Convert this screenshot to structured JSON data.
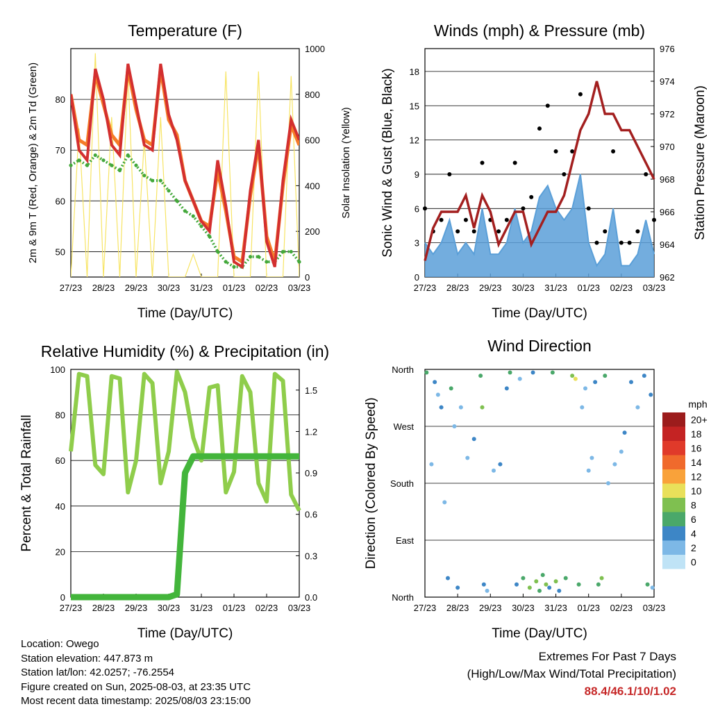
{
  "time_labels": [
    "27/23",
    "28/23",
    "29/23",
    "30/23",
    "31/23",
    "01/23",
    "02/23",
    "03/23"
  ],
  "info": {
    "location": "Location: Owego",
    "elevation": "Station elevation: 447.873 m",
    "latlon": "Station lat/lon: 42.0257; -76.2554",
    "created": "Figure created on Sun, 2025-08-03, at 23:35 UTC",
    "recent": "Most recent data timestamp: 2025/08/03 23:15:00"
  },
  "extremes": {
    "line1": "Extremes For Past 7 Days",
    "line2": "(High/Low/Max Wind/Total Precipitation)",
    "value": "88.4/46.1/10/1.02"
  },
  "colors": {
    "temp2m": "#d32f2f",
    "temp9m": "#f57c28",
    "dewpoint": "#43a83a",
    "solar": "#f7e463",
    "wind": "#5a9fd8",
    "gust": "#000000",
    "pressure": "#a31f1f",
    "rh": "#8fcd4b",
    "precip": "#43b53b"
  },
  "chart_data": [
    {
      "id": "temperature",
      "type": "line",
      "title": "Temperature (F)",
      "xlabel": "Time (Day/UTC)",
      "ylabel": "2m & 9m T (Red, Orange) & 2m Td (Green)",
      "y2label": "Solar Insolation (Yellow)",
      "x": [
        0,
        0.25,
        0.5,
        0.75,
        1,
        1.25,
        1.5,
        1.75,
        2,
        2.25,
        2.5,
        2.75,
        3,
        3.25,
        3.5,
        3.75,
        4,
        4.25,
        4.5,
        4.75,
        5,
        5.25,
        5.5,
        5.75,
        6,
        6.25,
        6.5,
        6.75,
        7
      ],
      "ylim": [
        45,
        90
      ],
      "yticks": [
        50,
        60,
        70,
        80
      ],
      "y2lim": [
        0,
        1000
      ],
      "y2ticks": [
        0,
        200,
        400,
        600,
        800,
        1000
      ],
      "series": [
        {
          "name": "2m T",
          "axis": "left",
          "values": [
            81,
            70,
            68,
            86,
            80,
            71,
            69,
            87,
            79,
            71,
            70,
            87,
            77,
            72,
            64,
            60,
            56,
            54,
            68,
            59,
            48,
            47,
            62,
            72,
            52,
            47,
            64,
            76,
            72
          ]
        },
        {
          "name": "9m T",
          "axis": "left",
          "values": [
            81,
            72,
            71,
            85,
            79,
            73,
            71,
            86,
            78,
            72,
            71,
            86,
            76,
            73,
            64,
            60,
            56,
            55,
            66,
            58,
            49,
            48,
            61,
            71,
            53,
            48,
            63,
            75,
            71
          ]
        },
        {
          "name": "2m Td",
          "axis": "left",
          "values": [
            67,
            68,
            67,
            69,
            68,
            67,
            66,
            69,
            67,
            65,
            64,
            64,
            62,
            60,
            58,
            57,
            55,
            53,
            50,
            48,
            47,
            47,
            49,
            49,
            48,
            48,
            50,
            50,
            48
          ]
        },
        {
          "name": "Solar",
          "axis": "right",
          "values": [
            0,
            650,
            0,
            980,
            0,
            700,
            0,
            900,
            0,
            600,
            0,
            700,
            0,
            0,
            0,
            100,
            0,
            0,
            0,
            900,
            0,
            0,
            0,
            900,
            0,
            0,
            0,
            880,
            0
          ]
        }
      ]
    },
    {
      "id": "winds",
      "type": "line",
      "title": "Winds (mph) & Pressure (mb)",
      "xlabel": "Time (Day/UTC)",
      "ylabel": "Sonic Wind & Gust (Blue, Black)",
      "y2label": "Station Pressure (Maroon)",
      "x": [
        0,
        0.25,
        0.5,
        0.75,
        1,
        1.25,
        1.5,
        1.75,
        2,
        2.25,
        2.5,
        2.75,
        3,
        3.25,
        3.5,
        3.75,
        4,
        4.25,
        4.5,
        4.75,
        5,
        5.25,
        5.5,
        5.75,
        6,
        6.25,
        6.5,
        6.75,
        7
      ],
      "ylim": [
        0,
        20
      ],
      "yticks": [
        0,
        3,
        6,
        9,
        12,
        15,
        18
      ],
      "y2lim": [
        962,
        976
      ],
      "y2ticks": [
        962,
        964,
        966,
        968,
        970,
        972,
        974,
        976
      ],
      "series": [
        {
          "name": "Wind",
          "axis": "left",
          "values": [
            3,
            2,
            3,
            5,
            2,
            3,
            2,
            6,
            2,
            2,
            3,
            6,
            3,
            4,
            7,
            8,
            6,
            5,
            6,
            9,
            3,
            1,
            2,
            6,
            1,
            1,
            2,
            5,
            2
          ]
        },
        {
          "name": "Gust",
          "axis": "left",
          "values": [
            6,
            4,
            5,
            9,
            4,
            5,
            4,
            10,
            5,
            4,
            5,
            10,
            6,
            7,
            13,
            15,
            11,
            9,
            11,
            16,
            6,
            3,
            4,
            11,
            3,
            3,
            4,
            9,
            5
          ]
        },
        {
          "name": "Pressure",
          "axis": "right",
          "values": [
            963,
            965,
            966,
            966,
            966,
            967,
            965,
            967,
            966,
            964,
            965,
            966,
            966,
            964,
            965,
            966,
            966,
            967,
            969,
            971,
            972,
            974,
            972,
            972,
            971,
            971,
            970,
            969,
            968
          ]
        }
      ]
    },
    {
      "id": "humidity",
      "type": "line",
      "title": "Relative Humidity (%) & Precipitation (in)",
      "xlabel": "Time (Day/UTC)",
      "ylabel": "Percent & Total Rainfall",
      "x": [
        0,
        0.25,
        0.5,
        0.75,
        1,
        1.25,
        1.5,
        1.75,
        2,
        2.25,
        2.5,
        2.75,
        3,
        3.25,
        3.5,
        3.75,
        4,
        4.25,
        4.5,
        4.75,
        5,
        5.25,
        5.5,
        5.75,
        6,
        6.25,
        6.5,
        6.75,
        7
      ],
      "ylim": [
        0,
        100
      ],
      "yticks": [
        0,
        20,
        40,
        60,
        80,
        100
      ],
      "y2lim": [
        0,
        1.65
      ],
      "y2ticks": [
        0.0,
        0.3,
        0.6,
        0.9,
        1.2,
        1.5
      ],
      "series": [
        {
          "name": "RH",
          "axis": "left",
          "values": [
            64,
            98,
            97,
            58,
            54,
            97,
            96,
            46,
            60,
            98,
            94,
            50,
            64,
            99,
            90,
            70,
            60,
            92,
            93,
            46,
            55,
            97,
            90,
            50,
            42,
            98,
            95,
            45,
            38
          ]
        },
        {
          "name": "Precipitation",
          "axis": "right",
          "values": [
            0,
            0,
            0,
            0,
            0,
            0,
            0,
            0,
            0,
            0,
            0,
            0,
            0,
            0.02,
            0.9,
            1.02,
            1.02,
            1.02,
            1.02,
            1.02,
            1.02,
            1.02,
            1.02,
            1.02,
            1.02,
            1.02,
            1.02,
            1.02,
            1.02
          ]
        }
      ]
    },
    {
      "id": "direction",
      "type": "scatter",
      "title": "Wind Direction",
      "xlabel": "Time (Day/UTC)",
      "ylabel": "Direction (Colored By Speed)",
      "yticks": [
        "North",
        "West",
        "South",
        "East",
        "North"
      ],
      "legend_title": "mph",
      "legend_labels": [
        "20+",
        "18",
        "16",
        "14",
        "12",
        "10",
        "8",
        "6",
        "4",
        "2",
        "0"
      ],
      "legend_colors": [
        "#9c1c1c",
        "#c42323",
        "#e03a2a",
        "#f06a2c",
        "#f9a23a",
        "#e9e05a",
        "#7fc050",
        "#4aa86a",
        "#3d86c6",
        "#7db8e6",
        "#bfe3f6"
      ],
      "points": [
        {
          "t": 0.05,
          "d": 355,
          "s": 6
        },
        {
          "t": 0.2,
          "d": 210,
          "s": 2
        },
        {
          "t": 0.3,
          "d": 340,
          "s": 4
        },
        {
          "t": 0.4,
          "d": 320,
          "s": 2
        },
        {
          "t": 0.5,
          "d": 300,
          "s": 4
        },
        {
          "t": 0.6,
          "d": 150,
          "s": 2
        },
        {
          "t": 0.7,
          "d": 30,
          "s": 4
        },
        {
          "t": 0.8,
          "d": 330,
          "s": 6
        },
        {
          "t": 0.9,
          "d": 270,
          "s": 2
        },
        {
          "t": 1.0,
          "d": 15,
          "s": 4
        },
        {
          "t": 1.1,
          "d": 300,
          "s": 2
        },
        {
          "t": 1.3,
          "d": 220,
          "s": 2
        },
        {
          "t": 1.5,
          "d": 250,
          "s": 4
        },
        {
          "t": 1.7,
          "d": 350,
          "s": 6
        },
        {
          "t": 1.75,
          "d": 300,
          "s": 8
        },
        {
          "t": 1.8,
          "d": 20,
          "s": 4
        },
        {
          "t": 1.9,
          "d": 10,
          "s": 2
        },
        {
          "t": 2.1,
          "d": 200,
          "s": 2
        },
        {
          "t": 2.3,
          "d": 210,
          "s": 4
        },
        {
          "t": 2.5,
          "d": 330,
          "s": 4
        },
        {
          "t": 2.6,
          "d": 355,
          "s": 6
        },
        {
          "t": 2.8,
          "d": 20,
          "s": 4
        },
        {
          "t": 2.9,
          "d": 345,
          "s": 2
        },
        {
          "t": 3.0,
          "d": 30,
          "s": 6
        },
        {
          "t": 3.2,
          "d": 15,
          "s": 8
        },
        {
          "t": 3.3,
          "d": 355,
          "s": 4
        },
        {
          "t": 3.4,
          "d": 25,
          "s": 8
        },
        {
          "t": 3.5,
          "d": 10,
          "s": 6
        },
        {
          "t": 3.6,
          "d": 35,
          "s": 6
        },
        {
          "t": 3.7,
          "d": 20,
          "s": 8
        },
        {
          "t": 3.8,
          "d": 15,
          "s": 4
        },
        {
          "t": 3.9,
          "d": 355,
          "s": 6
        },
        {
          "t": 4.0,
          "d": 25,
          "s": 8
        },
        {
          "t": 4.1,
          "d": 10,
          "s": 4
        },
        {
          "t": 4.3,
          "d": 30,
          "s": 6
        },
        {
          "t": 4.5,
          "d": 350,
          "s": 8
        },
        {
          "t": 4.6,
          "d": 345,
          "s": 10
        },
        {
          "t": 4.7,
          "d": 20,
          "s": 6
        },
        {
          "t": 4.8,
          "d": 300,
          "s": 2
        },
        {
          "t": 4.9,
          "d": 330,
          "s": 2
        },
        {
          "t": 5.0,
          "d": 200,
          "s": 2
        },
        {
          "t": 5.1,
          "d": 220,
          "s": 2
        },
        {
          "t": 5.2,
          "d": 340,
          "s": 4
        },
        {
          "t": 5.3,
          "d": 20,
          "s": 6
        },
        {
          "t": 5.4,
          "d": 30,
          "s": 8
        },
        {
          "t": 5.5,
          "d": 350,
          "s": 6
        },
        {
          "t": 5.6,
          "d": 180,
          "s": 2
        },
        {
          "t": 5.8,
          "d": 210,
          "s": 2
        },
        {
          "t": 6.0,
          "d": 230,
          "s": 2
        },
        {
          "t": 6.1,
          "d": 260,
          "s": 4
        },
        {
          "t": 6.3,
          "d": 340,
          "s": 4
        },
        {
          "t": 6.5,
          "d": 300,
          "s": 2
        },
        {
          "t": 6.7,
          "d": 350,
          "s": 4
        },
        {
          "t": 6.8,
          "d": 20,
          "s": 6
        },
        {
          "t": 6.9,
          "d": 320,
          "s": 4
        },
        {
          "t": 6.95,
          "d": 15,
          "s": 2
        }
      ]
    }
  ]
}
